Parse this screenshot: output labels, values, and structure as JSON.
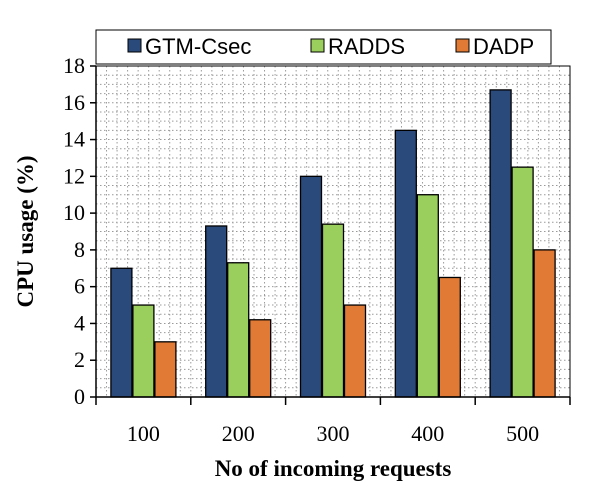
{
  "chart_data": {
    "type": "bar",
    "categories": [
      "100",
      "200",
      "300",
      "400",
      "500"
    ],
    "series": [
      {
        "name": "GTM-Csec",
        "values": [
          7,
          9.3,
          12,
          14.5,
          16.7
        ],
        "color": "#2b4a7c"
      },
      {
        "name": "RADDS",
        "values": [
          5,
          7.3,
          9.4,
          11,
          12.5
        ],
        "color": "#9bcf5d"
      },
      {
        "name": "DADP",
        "values": [
          3,
          4.2,
          5,
          6.5,
          8
        ],
        "color": "#e07a35"
      }
    ],
    "xlabel": "No of incoming requests",
    "ylabel": "CPU usage (%)",
    "ylim": [
      0,
      18
    ],
    "yticks": [
      0,
      2,
      4,
      6,
      8,
      10,
      12,
      14,
      16,
      18
    ],
    "grid": true,
    "legend_position": "top"
  }
}
